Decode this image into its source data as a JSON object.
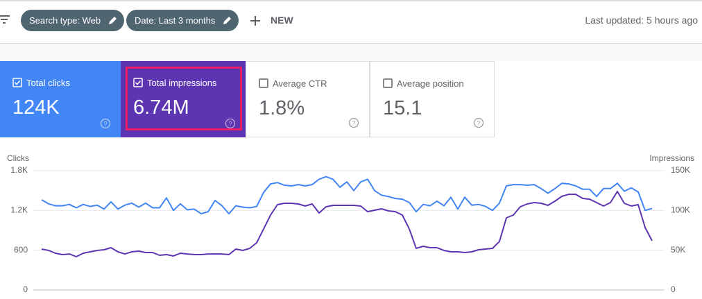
{
  "toolbar": {
    "filters": [
      "Search type: Web",
      "Date: Last 3 months"
    ],
    "new_button": "NEW",
    "last_updated": "Last updated: 5 hours ago"
  },
  "metrics": [
    {
      "label": "Total clicks",
      "value": "124K",
      "checked": true,
      "color": "#4285f4"
    },
    {
      "label": "Total impressions",
      "value": "6.74M",
      "checked": true,
      "color": "#5e35b1"
    },
    {
      "label": "Average CTR",
      "value": "1.8%",
      "checked": false,
      "color": "#ffffff"
    },
    {
      "label": "Average position",
      "value": "15.1",
      "checked": false,
      "color": "#ffffff"
    }
  ],
  "chart_data": {
    "type": "line",
    "y_label": "Clicks",
    "y2_label": "Impressions",
    "grid": true,
    "ylim": [
      0,
      1800
    ],
    "yticks": [
      0,
      600,
      {
        "value": 1200,
        "label": "1.2K"
      },
      {
        "value": 1800,
        "label": "1.8K"
      }
    ],
    "y2lim": [
      0,
      150000
    ],
    "y2ticks": [
      0,
      {
        "value": 50000,
        "label": "50K"
      },
      {
        "value": 100000,
        "label": "100K"
      },
      {
        "value": 150000,
        "label": "150K"
      }
    ],
    "series": [
      {
        "color": "#4285f4",
        "axis": "y",
        "values": [
          1360,
          1300,
          1270,
          1270,
          1290,
          1240,
          1290,
          1260,
          1280,
          1220,
          1330,
          1220,
          1280,
          1310,
          1250,
          1310,
          1240,
          1240,
          1390,
          1200,
          1300,
          1210,
          1220,
          1150,
          1180,
          1350,
          1270,
          1150,
          1270,
          1250,
          1240,
          1260,
          1470,
          1600,
          1620,
          1580,
          1570,
          1590,
          1570,
          1590,
          1670,
          1710,
          1670,
          1550,
          1630,
          1500,
          1630,
          1670,
          1500,
          1430,
          1410,
          1380,
          1370,
          1320,
          1180,
          1290,
          1270,
          1340,
          1270,
          1400,
          1220,
          1400,
          1280,
          1290,
          1260,
          1200,
          1310,
          1570,
          1590,
          1590,
          1580,
          1590,
          1530,
          1460,
          1530,
          1610,
          1600,
          1570,
          1520,
          1520,
          1410,
          1530,
          1530,
          1610,
          1490,
          1540,
          1480,
          1200,
          1230
        ]
      },
      {
        "color": "#5e35b1",
        "axis": "y2",
        "values": [
          51450,
          49700,
          46200,
          44500,
          45300,
          41900,
          46200,
          48000,
          49700,
          50600,
          53200,
          48000,
          45300,
          48000,
          48800,
          47100,
          47100,
          43600,
          44500,
          42700,
          46200,
          45300,
          44500,
          44500,
          45300,
          45300,
          45300,
          44500,
          51450,
          49700,
          52300,
          59300,
          76700,
          94200,
          107300,
          109000,
          109000,
          108100,
          105500,
          108100,
          96800,
          104600,
          106400,
          106400,
          106400,
          106400,
          105500,
          98500,
          100300,
          102000,
          99400,
          98500,
          94200,
          76700,
          52300,
          54900,
          53200,
          53200,
          49700,
          48000,
          48000,
          47100,
          48000,
          50600,
          51450,
          52300,
          61000,
          90700,
          94200,
          104600,
          108100,
          109900,
          109000,
          106400,
          111600,
          117700,
          120300,
          120300,
          115100,
          114200,
          109900,
          105500,
          109900,
          123800,
          109000,
          105500,
          107300,
          78500,
          61900
        ]
      }
    ]
  }
}
